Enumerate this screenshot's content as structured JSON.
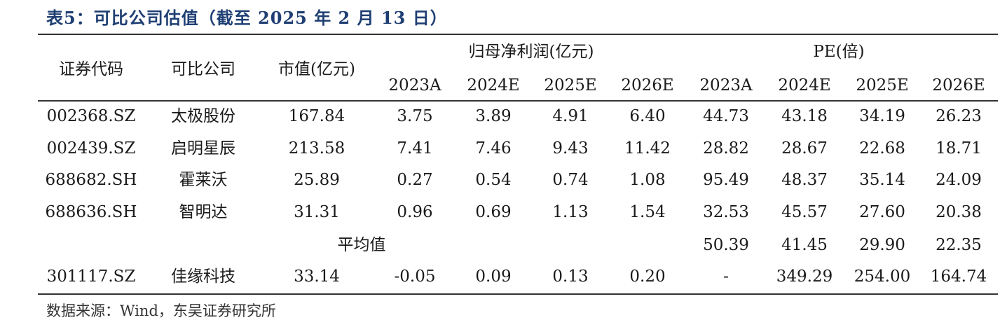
{
  "title": "表5：可比公司估值（截至 2025 年 2 月 13 日）",
  "headers": {
    "code": "证券代码",
    "company": "可比公司",
    "mktcap": "市值(亿元)",
    "profit_group": "归母净利润(亿元)",
    "pe_group": "PE(倍)",
    "years": [
      "2023A",
      "2024E",
      "2025E",
      "2026E"
    ]
  },
  "rows": [
    {
      "code": "002368.SZ",
      "company": "太极股份",
      "mktcap": "167.84",
      "profit": [
        "3.75",
        "3.89",
        "4.91",
        "6.40"
      ],
      "pe": [
        "44.73",
        "43.18",
        "34.19",
        "26.23"
      ]
    },
    {
      "code": "002439.SZ",
      "company": "启明星辰",
      "mktcap": "213.58",
      "profit": [
        "7.41",
        "7.46",
        "9.43",
        "11.42"
      ],
      "pe": [
        "28.82",
        "28.67",
        "22.68",
        "18.71"
      ]
    },
    {
      "code": "688682.SH",
      "company": "霍莱沃",
      "mktcap": "25.89",
      "profit": [
        "0.27",
        "0.54",
        "0.74",
        "1.08"
      ],
      "pe": [
        "95.49",
        "48.37",
        "35.14",
        "24.09"
      ]
    },
    {
      "code": "688636.SH",
      "company": "智明达",
      "mktcap": "31.31",
      "profit": [
        "0.96",
        "0.69",
        "1.13",
        "1.54"
      ],
      "pe": [
        "32.53",
        "45.57",
        "27.60",
        "20.38"
      ]
    }
  ],
  "average": {
    "label": "平均值",
    "pe": [
      "50.39",
      "41.45",
      "29.90",
      "22.35"
    ]
  },
  "target": {
    "code": "301117.SZ",
    "company": "佳缘科技",
    "mktcap": "33.14",
    "profit": [
      "-0.05",
      "0.09",
      "0.13",
      "0.20"
    ],
    "pe": [
      "-",
      "349.29",
      "254.00",
      "164.74"
    ]
  },
  "source": "数据来源：Wind，东吴证券研究所"
}
